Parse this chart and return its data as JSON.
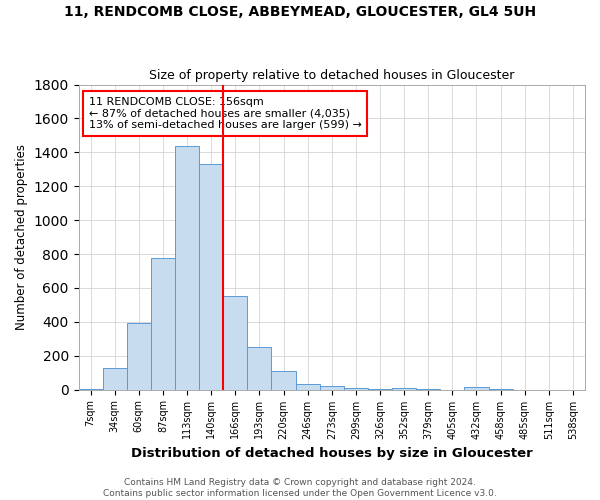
{
  "title": "11, RENDCOMB CLOSE, ABBEYMEAD, GLOUCESTER, GL4 5UH",
  "subtitle": "Size of property relative to detached houses in Gloucester",
  "xlabel": "Distribution of detached houses by size in Gloucester",
  "ylabel": "Number of detached properties",
  "bins": [
    "7sqm",
    "34sqm",
    "60sqm",
    "87sqm",
    "113sqm",
    "140sqm",
    "166sqm",
    "193sqm",
    "220sqm",
    "246sqm",
    "273sqm",
    "299sqm",
    "326sqm",
    "352sqm",
    "379sqm",
    "405sqm",
    "432sqm",
    "458sqm",
    "485sqm",
    "511sqm",
    "538sqm"
  ],
  "values": [
    5,
    128,
    390,
    775,
    1440,
    1330,
    555,
    250,
    110,
    35,
    20,
    10,
    5,
    8,
    3,
    0,
    15,
    3,
    0,
    0,
    0
  ],
  "bar_color": "#c8dcf0",
  "bar_edge_color": "#5b9bd5",
  "vline_bin_index": 6,
  "vline_color": "red",
  "annotation_text": "11 RENDCOMB CLOSE: 156sqm\n← 87% of detached houses are smaller (4,035)\n13% of semi-detached houses are larger (599) →",
  "annotation_box_color": "white",
  "annotation_box_edge": "red",
  "footer": "Contains HM Land Registry data © Crown copyright and database right 2024.\nContains public sector information licensed under the Open Government Licence v3.0.",
  "ylim": [
    0,
    1800
  ],
  "figsize": [
    6.0,
    5.0
  ],
  "dpi": 100
}
